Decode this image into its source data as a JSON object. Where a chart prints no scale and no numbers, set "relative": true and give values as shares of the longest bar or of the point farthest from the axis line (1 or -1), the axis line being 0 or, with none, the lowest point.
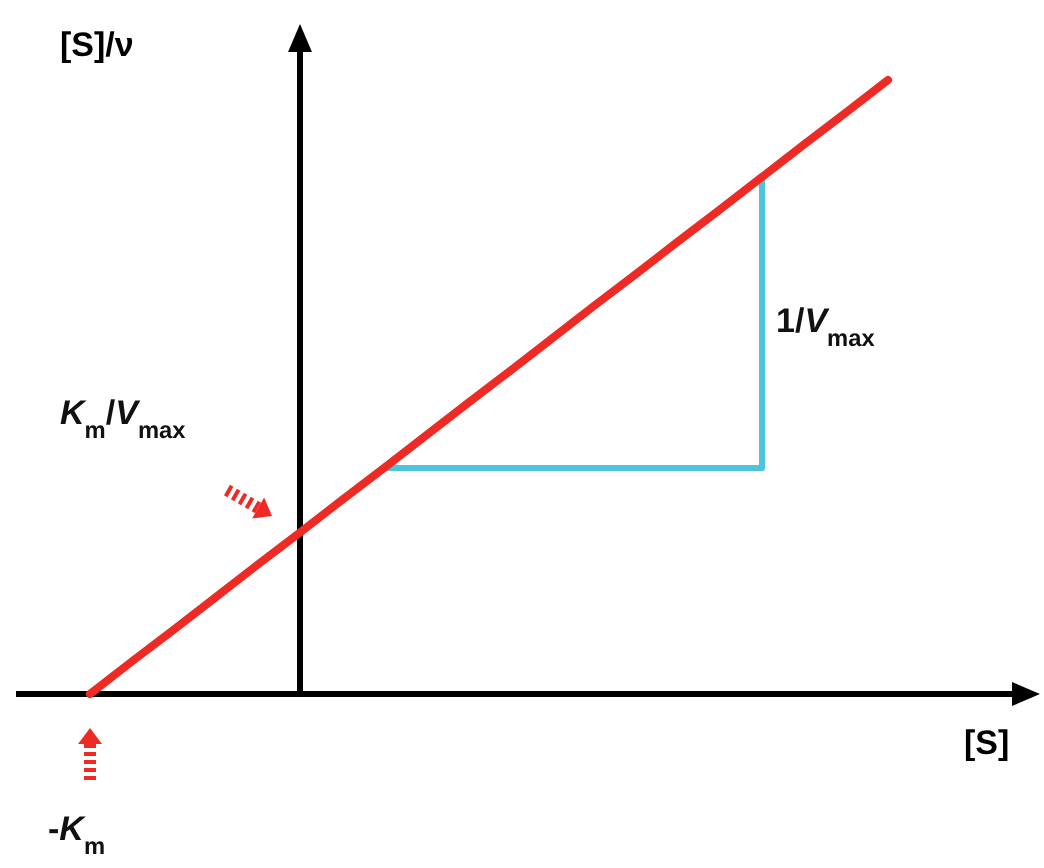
{
  "chart_data": {
    "type": "line",
    "relative": true,
    "xlabel": "[S]",
    "ylabel": "[S]/ν",
    "categories": [
      null,
      null,
      null,
      null,
      null,
      null,
      null,
      null,
      null,
      null,
      null,
      null,
      null,
      null,
      null,
      null,
      null,
      null,
      null,
      null
    ],
    "series": [
      {
        "color": "#ee2a24",
        "values": [
          0,
          0.053,
          0.105,
          0.158,
          0.211,
          0.263,
          0.316,
          0.368,
          0.421,
          0.474,
          0.526,
          0.579,
          0.632,
          0.684,
          0.737,
          0.789,
          0.842,
          0.895,
          0.947,
          1
        ]
      },
      {
        "color": "#4ec3dc",
        "values": [
          null,
          null,
          null,
          null,
          null,
          null,
          null,
          0.368,
          0.368,
          0.368,
          0.368,
          0.368,
          0.368,
          0.368,
          0.368,
          0.368,
          0.368,
          null,
          null,
          null
        ]
      }
    ],
    "annotations": [
      "K$_{m}$/V$_{max}$",
      "1/V$_{max}$",
      "-K$_{m}$"
    ]
  }
}
